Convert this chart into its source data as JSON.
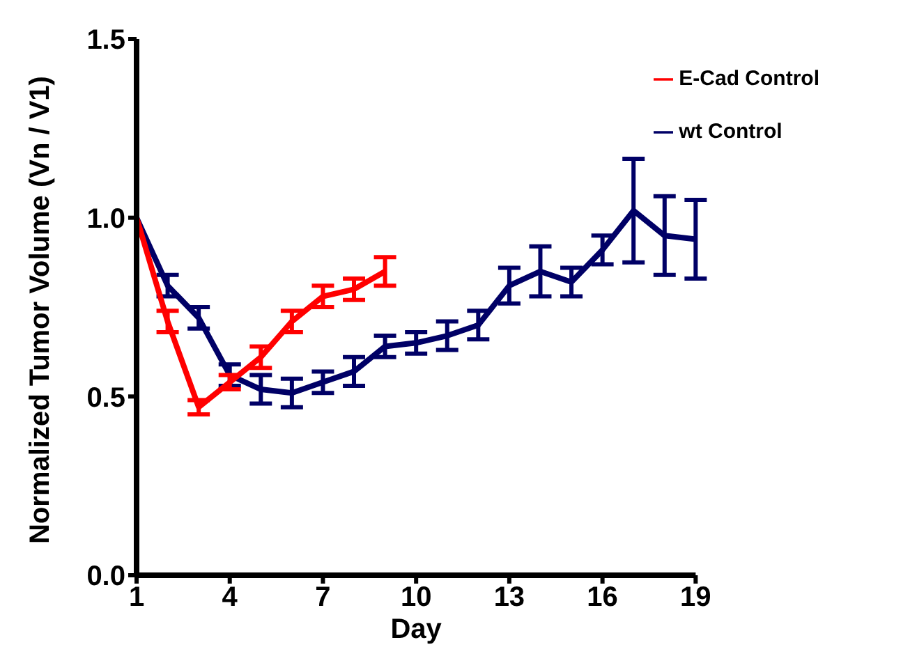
{
  "chart_data": {
    "type": "line",
    "xlabel": "Day",
    "ylabel": "Normalized Tumor Volume (Vn / V1)",
    "xlim": [
      1,
      19
    ],
    "xticks": [
      1,
      4,
      7,
      10,
      13,
      16,
      19
    ],
    "ylim": [
      0,
      1.5
    ],
    "yticks": [
      {
        "value": 0,
        "label": "0.0"
      },
      {
        "value": 0.5,
        "label": "0.5"
      },
      {
        "value": 1,
        "label": "1.0"
      },
      {
        "value": 1.5,
        "label": "1.5"
      }
    ],
    "legend": "top right",
    "grid": false,
    "marker": "none",
    "line_style": "solid",
    "series": [
      {
        "name": "wt Control",
        "color": "#000066",
        "x": [
          1,
          2,
          3,
          4,
          5,
          6,
          7,
          8,
          9,
          10,
          11,
          12,
          13,
          14,
          15,
          16,
          17,
          18,
          19
        ],
        "values": [
          1.0,
          0.81,
          0.72,
          0.56,
          0.52,
          0.51,
          0.54,
          0.57,
          0.64,
          0.65,
          0.67,
          0.7,
          0.81,
          0.85,
          0.82,
          0.91,
          1.02,
          0.95,
          0.94
        ],
        "errors": [
          null,
          0.03,
          0.03,
          0.03,
          0.04,
          0.04,
          0.03,
          0.04,
          0.03,
          0.03,
          0.04,
          0.04,
          0.05,
          0.07,
          0.04,
          0.04,
          0.145,
          0.11,
          0.11
        ]
      },
      {
        "name": "E-Cad Control",
        "color": "#ff0000",
        "x": [
          1,
          2,
          3,
          4,
          5,
          6,
          7,
          8,
          9
        ],
        "values": [
          1.0,
          0.71,
          0.47,
          0.54,
          0.61,
          0.71,
          0.78,
          0.8,
          0.85
        ],
        "errors": [
          null,
          0.03,
          0.02,
          0.02,
          0.03,
          0.03,
          0.03,
          0.03,
          0.04
        ]
      }
    ]
  }
}
